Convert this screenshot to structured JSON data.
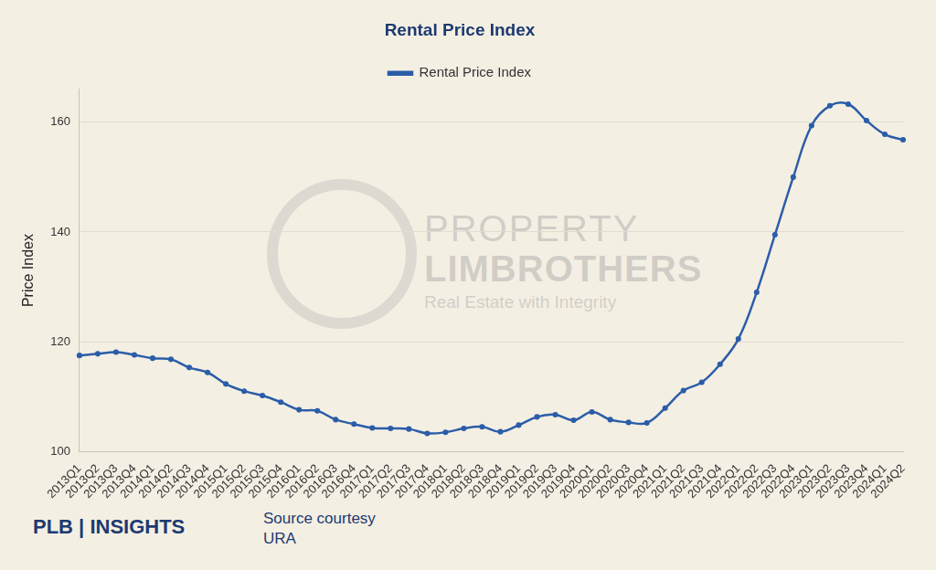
{
  "chart_data": {
    "type": "line",
    "title": "Rental Price Index",
    "y_label": "Price Index",
    "categories": [
      "2013Q1",
      "2013Q2",
      "2013Q3",
      "2013Q4",
      "2014Q1",
      "2014Q2",
      "2014Q3",
      "2014Q4",
      "2015Q1",
      "2015Q2",
      "2015Q3",
      "2015Q4",
      "2016Q1",
      "2016Q2",
      "2016Q3",
      "2016Q4",
      "2017Q1",
      "2017Q2",
      "2017Q3",
      "2017Q4",
      "2018Q1",
      "2018Q2",
      "2018Q3",
      "2018Q4",
      "2019Q1",
      "2019Q2",
      "2019Q3",
      "2019Q4",
      "2020Q1",
      "2020Q2",
      "2020Q3",
      "2020Q4",
      "2021Q1",
      "2021Q2",
      "2021Q3",
      "2021Q4",
      "2022Q1",
      "2022Q2",
      "2022Q3",
      "2022Q4",
      "2023Q1",
      "2023Q2",
      "2023Q3",
      "2023Q4",
      "2024Q1",
      "2024Q2"
    ],
    "series": [
      {
        "name": "Rental Price Index",
        "color": "#2b5da8",
        "values": [
          117.5,
          117.8,
          118.1,
          117.6,
          117.0,
          116.8,
          115.3,
          114.4,
          112.3,
          111.0,
          110.2,
          109.0,
          107.6,
          107.4,
          105.8,
          105.0,
          104.3,
          104.2,
          104.1,
          103.3,
          103.5,
          104.2,
          104.5,
          103.6,
          104.8,
          106.3,
          106.7,
          105.7,
          107.2,
          105.8,
          105.3,
          105.2,
          107.9,
          111.1,
          112.6,
          115.9,
          120.5,
          129.0,
          139.5,
          150.0,
          159.4,
          163.0,
          163.3,
          160.3,
          157.8,
          156.8
        ]
      }
    ],
    "ylim": [
      100,
      166
    ],
    "yticks": [
      100,
      120,
      140,
      160
    ],
    "grid": true,
    "legend": "top",
    "marker": "circle",
    "line_style": "solid",
    "annotations": [
      "PLB | INSIGHTS",
      "Source courtesy",
      "URA",
      "PROPERTY",
      "LIMBROTHERS",
      "Real Estate with Integrity"
    ]
  }
}
